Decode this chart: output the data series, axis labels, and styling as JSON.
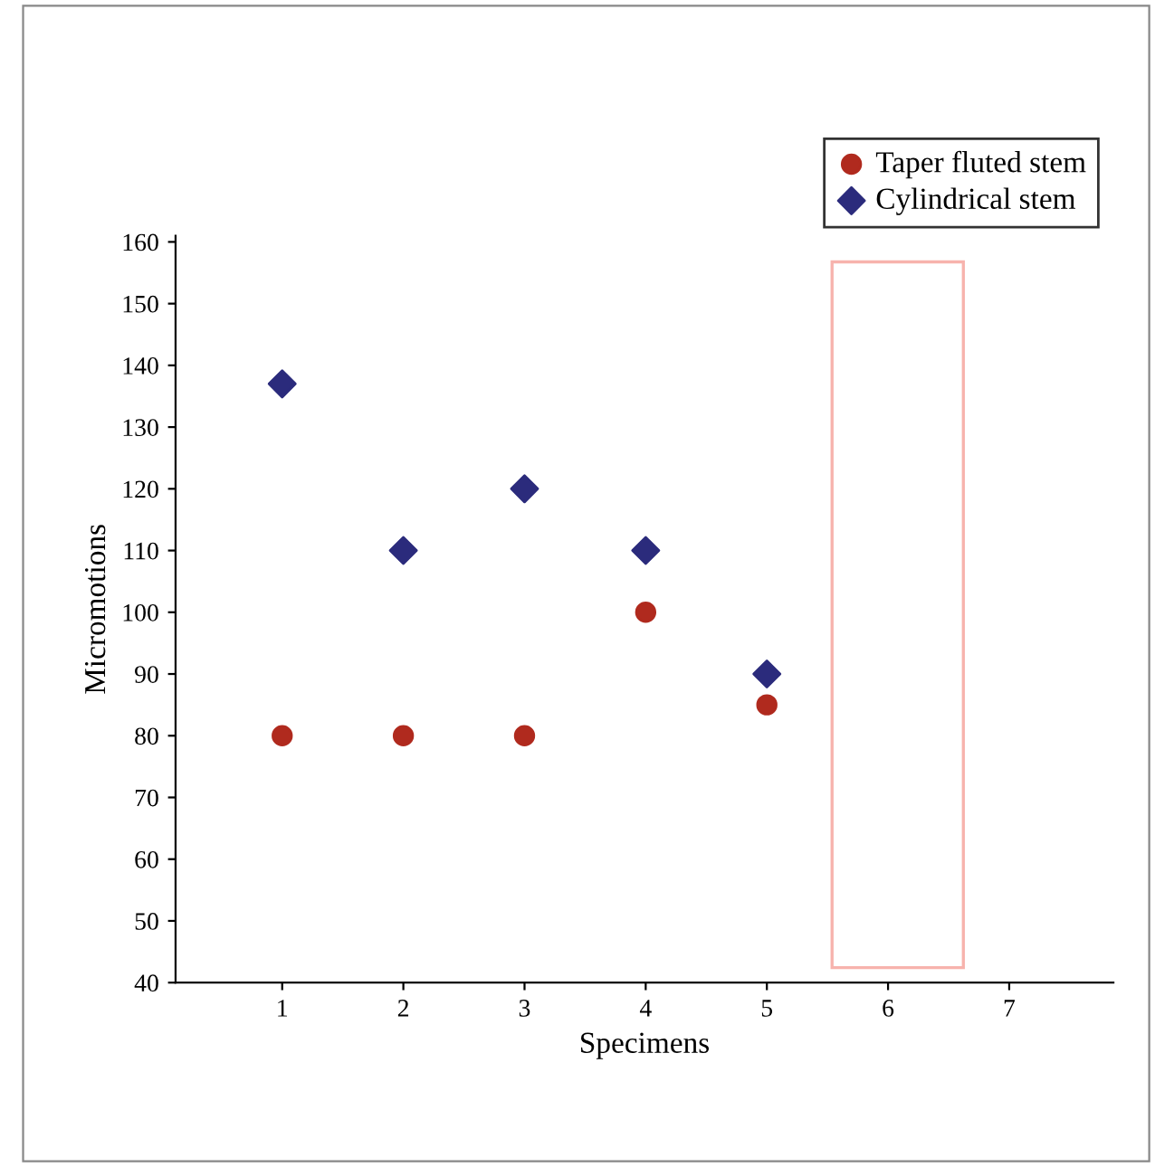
{
  "chart_data": {
    "type": "scatter",
    "xlabel": "Specimens",
    "ylabel": "Micromotions",
    "x": [
      1,
      2,
      3,
      4,
      5
    ],
    "series": [
      {
        "name": "Taper fluted stem",
        "color": "#b02a1e",
        "marker": "circle",
        "values": [
          80,
          80,
          80,
          100,
          85
        ]
      },
      {
        "name": "Cylindrical stem",
        "color": "#2b2b7c",
        "marker": "diamond",
        "values": [
          137,
          110,
          120,
          110,
          90
        ]
      }
    ],
    "xlim": [
      0.12,
      7.86
    ],
    "xticks": [
      1,
      2,
      3,
      4,
      5,
      6,
      7
    ],
    "ylim": [
      40,
      161
    ],
    "yticks": [
      40,
      50,
      60,
      70,
      80,
      90,
      100,
      110,
      120,
      130,
      140,
      150,
      160
    ],
    "grid": false,
    "legend": "top right"
  }
}
